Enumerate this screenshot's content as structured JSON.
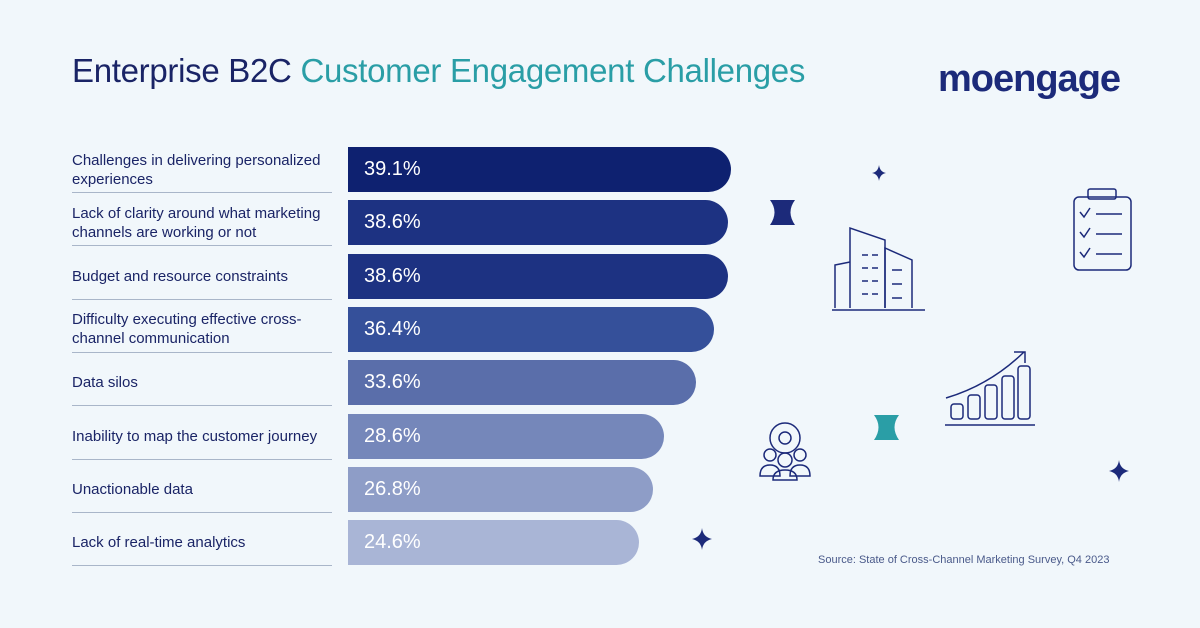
{
  "title": {
    "part1": "Enterprise B2C ",
    "part2": "Customer Engagement Challenges"
  },
  "logo": "moengage",
  "source": "Source: State of Cross-Channel Marketing Survey, Q4 2023",
  "colors": {
    "title": "#1a2466",
    "accent": "#2a9ea6",
    "background": "#f1f7fb"
  },
  "chart_data": {
    "type": "bar",
    "orientation": "horizontal",
    "categories": [
      "Challenges in delivering personalized experiences",
      "Lack of clarity around what marketing channels are working or not",
      "Budget and resource constraints",
      "Difficulty executing effective cross-channel communication",
      "Data silos",
      "Inability to map the customer journey",
      "Unactionable data",
      "Lack of real-time analytics"
    ],
    "values": [
      39.1,
      38.6,
      38.6,
      36.4,
      33.6,
      28.6,
      26.8,
      24.6
    ],
    "data_labels": [
      "39.1%",
      "38.6%",
      "38.6%",
      "36.4%",
      "33.6%",
      "28.6%",
      "26.8%",
      "24.6%"
    ],
    "bar_colors": [
      "#0e2170",
      "#1d3282",
      "#1d3282",
      "#35509a",
      "#5a6eaa",
      "#7587ba",
      "#8e9dc7",
      "#a9b5d6"
    ],
    "title": "Enterprise B2C Customer Engagement Challenges",
    "xlabel": "",
    "ylabel": ""
  },
  "icons": [
    "sparkle-icon",
    "building-icon",
    "checklist-icon",
    "growth-chart-icon",
    "team-gear-icon"
  ]
}
